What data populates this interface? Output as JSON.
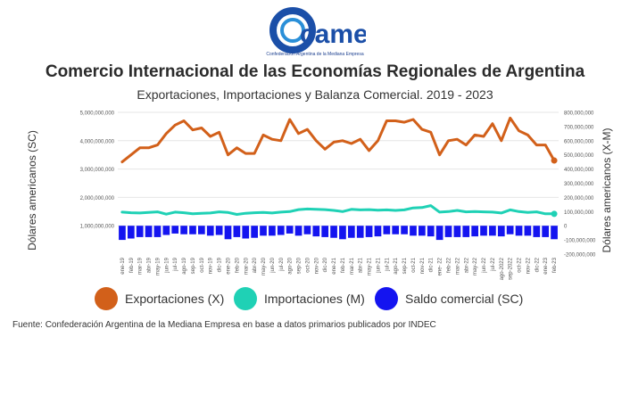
{
  "brand": {
    "logo_text": "came",
    "subtitle": "Confederación Argentina de la Mediana Empresa"
  },
  "title": "Comercio Internacional de las Economías Regionales de Argentina",
  "subtitle": "Exportaciones, Importaciones y Balanza Comercial. 2019 - 2023",
  "source": "Fuente: Confederación Argentina de la Mediana Empresa en base a datos primarios publicados por INDEC",
  "chart_data": {
    "type": "line",
    "ylabel": "Dólares americanos (SC)",
    "y2label": "Dólares americanos (X-M)",
    "ylim": [
      0,
      5000000000
    ],
    "y2lim": [
      -200000000,
      800000000
    ],
    "y_ticks": [
      "1,000,000,000",
      "2,000,000,000",
      "3,000,000,000",
      "4,000,000,000",
      "5,000,000,000"
    ],
    "y2_ticks": [
      "-200,000,000",
      "-100,000,000",
      "0",
      "100,000,000",
      "200,000,000",
      "300,000,000",
      "400,000,000",
      "500,000,000",
      "600,000,000",
      "700,000,000",
      "800,000,000"
    ],
    "grid": true,
    "legend_position": "bottom",
    "categories": [
      "ene-19",
      "feb-19",
      "mar-19",
      "abr-19",
      "may-19",
      "jun-19",
      "jul-19",
      "ago-19",
      "sep-19",
      "oct-19",
      "nov-19",
      "dic-19",
      "ene-20",
      "feb-20",
      "mar-20",
      "abr-20",
      "may-20",
      "jun-20",
      "jul-20",
      "ago-20",
      "sep-20",
      "oct-20",
      "nov-20",
      "dic-20",
      "ene-21",
      "feb-21",
      "mar-21",
      "abr-21",
      "may-21",
      "jun-21",
      "jul-21",
      "ago-21",
      "sep-21",
      "oct-21",
      "nov-21",
      "dic-21",
      "ene- 22",
      "feb-22",
      "mar-22",
      "abr-22",
      "may-22",
      "jun-22",
      "jul-22",
      "ago-2022",
      "sep-2022",
      "oct-22",
      "nov-22",
      "dic-22",
      "ene-23",
      "feb-23"
    ],
    "tick_labels": [
      "ene-19",
      "feb-19",
      "mar-19",
      "abr-19",
      "may-19",
      "jun-19",
      "jul-19",
      "ago-19",
      "sep-19",
      "oct-19",
      "nov-19",
      "dic-19",
      "ene-20",
      "feb-20",
      "mar-20",
      "abr-20",
      "may-20",
      "jun-20",
      "jul-20",
      "ago-20",
      "sep-20",
      "oct-20",
      "nov-20",
      "dic-20",
      "ene-21",
      "feb-21",
      "mar-21",
      "abr-21",
      "may-21",
      "jun-21",
      "jul-21",
      "ago-21",
      "sep-21",
      "oct-21",
      "nov-21",
      "dic-21",
      "ene- 22",
      "feb-22",
      "mar-22",
      "abr-22",
      "may-22",
      "jun-22",
      "jul-22",
      "ago-2022",
      "sep-2022",
      "oct-22",
      "nov-22",
      "dic-22",
      "ene-23",
      "feb-23"
    ],
    "series": [
      {
        "name": "Exportaciones (X)",
        "color": "#d2601a",
        "type": "line",
        "axis": "left",
        "values": [
          3250000000,
          3500000000,
          3750000000,
          3750000000,
          3850000000,
          4250000000,
          4550000000,
          4700000000,
          4380000000,
          4450000000,
          4150000000,
          4300000000,
          3500000000,
          3750000000,
          3550000000,
          3550000000,
          4200000000,
          4050000000,
          4000000000,
          4750000000,
          4250000000,
          4400000000,
          4000000000,
          3700000000,
          3950000000,
          4000000000,
          3900000000,
          4050000000,
          3650000000,
          4000000000,
          4700000000,
          4700000000,
          4650000000,
          4750000000,
          4400000000,
          4300000000,
          3500000000,
          4000000000,
          4050000000,
          3850000000,
          4200000000,
          4150000000,
          4600000000,
          4000000000,
          4800000000,
          4350000000,
          4200000000,
          3850000000,
          3850000000,
          3300000000
        ]
      },
      {
        "name": "Importaciones (M)",
        "color": "#1fd1b5",
        "type": "line",
        "axis": "left",
        "values": [
          1480000000,
          1460000000,
          1450000000,
          1470000000,
          1490000000,
          1410000000,
          1480000000,
          1460000000,
          1420000000,
          1440000000,
          1450000000,
          1490000000,
          1470000000,
          1400000000,
          1440000000,
          1460000000,
          1470000000,
          1450000000,
          1480000000,
          1500000000,
          1570000000,
          1590000000,
          1580000000,
          1570000000,
          1540000000,
          1500000000,
          1580000000,
          1560000000,
          1570000000,
          1550000000,
          1560000000,
          1540000000,
          1560000000,
          1630000000,
          1640000000,
          1710000000,
          1480000000,
          1500000000,
          1540000000,
          1490000000,
          1500000000,
          1490000000,
          1480000000,
          1450000000,
          1560000000,
          1500000000,
          1470000000,
          1490000000,
          1420000000,
          1420000000
        ]
      },
      {
        "name": "Saldo comercial (SC)",
        "color": "#1414f0",
        "type": "bar",
        "axis": "right",
        "values": [
          -100000000,
          -90000000,
          -80000000,
          -80000000,
          -80000000,
          -65000000,
          -55000000,
          -60000000,
          -60000000,
          -60000000,
          -70000000,
          -65000000,
          -95000000,
          -80000000,
          -90000000,
          -85000000,
          -70000000,
          -70000000,
          -65000000,
          -55000000,
          -70000000,
          -60000000,
          -75000000,
          -80000000,
          -85000000,
          -95000000,
          -85000000,
          -85000000,
          -80000000,
          -75000000,
          -60000000,
          -60000000,
          -60000000,
          -70000000,
          -70000000,
          -75000000,
          -100000000,
          -80000000,
          -80000000,
          -80000000,
          -75000000,
          -70000000,
          -70000000,
          -75000000,
          -60000000,
          -70000000,
          -70000000,
          -80000000,
          -80000000,
          -95000000
        ]
      }
    ]
  }
}
